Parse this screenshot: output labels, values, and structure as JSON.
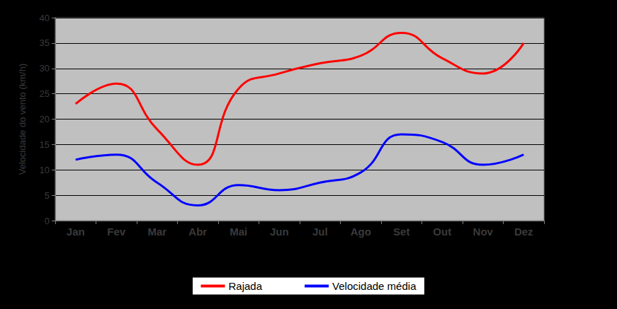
{
  "chart_data": {
    "type": "line",
    "y_label": "Velocidade do vento (km/h)",
    "categories": [
      "Jan",
      "Fev",
      "Mar",
      "Abr",
      "Mai",
      "Jun",
      "Jul",
      "Ago",
      "Set",
      "Out",
      "Nov",
      "Dez"
    ],
    "series": [
      {
        "name": "Rajada",
        "color": "#ff0000",
        "values": [
          23,
          27,
          18,
          11,
          26,
          29,
          31,
          32.5,
          37,
          32,
          29,
          35
        ]
      },
      {
        "name": "Velocidade média",
        "color": "#0000ff",
        "values": [
          12,
          13,
          7.5,
          3,
          7,
          6,
          7.5,
          9.5,
          17,
          15.5,
          11,
          13
        ]
      }
    ],
    "ylim": [
      0,
      40
    ],
    "yticks": [
      0,
      5,
      10,
      15,
      20,
      25,
      30,
      35,
      40
    ],
    "grid": true,
    "legend": "bottom"
  }
}
